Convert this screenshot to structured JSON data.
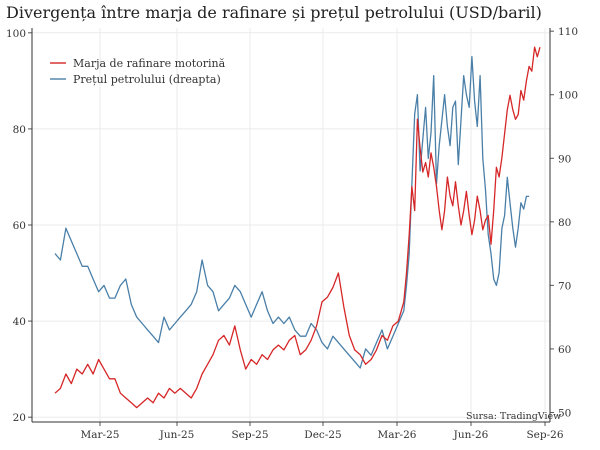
{
  "chart_data": {
    "type": "line",
    "title": "Divergența între marja de rafinare și prețul petrolului (USD/baril)",
    "source": "Sursa: TradingView",
    "legend_position": "top-left",
    "grid": true,
    "x_ticks": [
      "Mar-25",
      "Jun-25",
      "Sep-25",
      "Dec-25",
      "Mar-26",
      "Jun-26",
      "Sep-26"
    ],
    "y_left": {
      "ticks": [
        20,
        40,
        60,
        80,
        100
      ],
      "range": [
        19,
        101
      ]
    },
    "y_right": {
      "ticks": [
        50,
        60,
        70,
        80,
        90,
        100,
        110
      ],
      "range": [
        48.5,
        110.5
      ]
    },
    "series": [
      {
        "name": "Marja de rafinare motorină",
        "axis": "left",
        "color": "#d62728",
        "points": [
          [
            0,
            25
          ],
          [
            2,
            26
          ],
          [
            4,
            29
          ],
          [
            6,
            27
          ],
          [
            8,
            30
          ],
          [
            10,
            29
          ],
          [
            12,
            31
          ],
          [
            14,
            29
          ],
          [
            16,
            32
          ],
          [
            18,
            30
          ],
          [
            20,
            28
          ],
          [
            22,
            28
          ],
          [
            24,
            25
          ],
          [
            26,
            24
          ],
          [
            28,
            23
          ],
          [
            30,
            22
          ],
          [
            32,
            23
          ],
          [
            34,
            24
          ],
          [
            36,
            23
          ],
          [
            38,
            25
          ],
          [
            40,
            24
          ],
          [
            42,
            26
          ],
          [
            44,
            25
          ],
          [
            46,
            26
          ],
          [
            48,
            25
          ],
          [
            50,
            24
          ],
          [
            52,
            26
          ],
          [
            54,
            29
          ],
          [
            56,
            31
          ],
          [
            58,
            33
          ],
          [
            60,
            36
          ],
          [
            62,
            37
          ],
          [
            64,
            35
          ],
          [
            66,
            39
          ],
          [
            68,
            34
          ],
          [
            70,
            30
          ],
          [
            72,
            32
          ],
          [
            74,
            31
          ],
          [
            76,
            33
          ],
          [
            78,
            32
          ],
          [
            80,
            34
          ],
          [
            82,
            35
          ],
          [
            84,
            34
          ],
          [
            86,
            36
          ],
          [
            88,
            37
          ],
          [
            90,
            33
          ],
          [
            92,
            34
          ],
          [
            94,
            36
          ],
          [
            96,
            39
          ],
          [
            98,
            44
          ],
          [
            100,
            45
          ],
          [
            102,
            47
          ],
          [
            104,
            50
          ],
          [
            106,
            43
          ],
          [
            108,
            37
          ],
          [
            110,
            34
          ],
          [
            112,
            33
          ],
          [
            114,
            31
          ],
          [
            116,
            32
          ],
          [
            118,
            34
          ],
          [
            120,
            37
          ],
          [
            122,
            36
          ],
          [
            124,
            39
          ],
          [
            126,
            40
          ],
          [
            128,
            44
          ],
          [
            129,
            50
          ],
          [
            130,
            58
          ],
          [
            131,
            68
          ],
          [
            132,
            63
          ],
          [
            133,
            82
          ],
          [
            134,
            76
          ],
          [
            135,
            71
          ],
          [
            136,
            73
          ],
          [
            137,
            70
          ],
          [
            138,
            75
          ],
          [
            139,
            72
          ],
          [
            140,
            68
          ],
          [
            141,
            63
          ],
          [
            142,
            59
          ],
          [
            143,
            63
          ],
          [
            144,
            70
          ],
          [
            145,
            66
          ],
          [
            146,
            64
          ],
          [
            147,
            69
          ],
          [
            148,
            64
          ],
          [
            149,
            60
          ],
          [
            150,
            63
          ],
          [
            151,
            67
          ],
          [
            152,
            62
          ],
          [
            153,
            58
          ],
          [
            154,
            61
          ],
          [
            155,
            66
          ],
          [
            156,
            63
          ],
          [
            157,
            59
          ],
          [
            158,
            61
          ],
          [
            159,
            62
          ],
          [
            160,
            56
          ],
          [
            161,
            63
          ],
          [
            162,
            72
          ],
          [
            163,
            70
          ],
          [
            164,
            74
          ],
          [
            165,
            79
          ],
          [
            166,
            84
          ],
          [
            167,
            87
          ],
          [
            168,
            84
          ],
          [
            169,
            82
          ],
          [
            170,
            83
          ],
          [
            171,
            88
          ],
          [
            172,
            86
          ],
          [
            173,
            90
          ],
          [
            174,
            93
          ],
          [
            175,
            92
          ],
          [
            176,
            97
          ],
          [
            177,
            95
          ],
          [
            178,
            97
          ]
        ]
      },
      {
        "name": "Prețul petrolului (dreapta)",
        "axis": "right",
        "color": "#4a7fa8",
        "points": [
          [
            0,
            75
          ],
          [
            2,
            74
          ],
          [
            4,
            79
          ],
          [
            6,
            77
          ],
          [
            8,
            75
          ],
          [
            10,
            73
          ],
          [
            12,
            73
          ],
          [
            14,
            71
          ],
          [
            16,
            69
          ],
          [
            18,
            70
          ],
          [
            20,
            68
          ],
          [
            22,
            68
          ],
          [
            24,
            70
          ],
          [
            26,
            71
          ],
          [
            28,
            67
          ],
          [
            30,
            65
          ],
          [
            32,
            64
          ],
          [
            34,
            63
          ],
          [
            36,
            62
          ],
          [
            38,
            61
          ],
          [
            40,
            65
          ],
          [
            42,
            63
          ],
          [
            44,
            64
          ],
          [
            46,
            65
          ],
          [
            48,
            66
          ],
          [
            50,
            67
          ],
          [
            52,
            69
          ],
          [
            54,
            74
          ],
          [
            56,
            70
          ],
          [
            58,
            69
          ],
          [
            60,
            66
          ],
          [
            62,
            67
          ],
          [
            64,
            68
          ],
          [
            66,
            70
          ],
          [
            68,
            69
          ],
          [
            70,
            67
          ],
          [
            72,
            65
          ],
          [
            74,
            67
          ],
          [
            76,
            69
          ],
          [
            78,
            66
          ],
          [
            80,
            64
          ],
          [
            82,
            65
          ],
          [
            84,
            64
          ],
          [
            86,
            65
          ],
          [
            88,
            63
          ],
          [
            90,
            62
          ],
          [
            92,
            62
          ],
          [
            94,
            64
          ],
          [
            96,
            63
          ],
          [
            98,
            61
          ],
          [
            100,
            60
          ],
          [
            102,
            62
          ],
          [
            104,
            61
          ],
          [
            106,
            60
          ],
          [
            108,
            59
          ],
          [
            110,
            58
          ],
          [
            112,
            57
          ],
          [
            114,
            60
          ],
          [
            116,
            59
          ],
          [
            118,
            61
          ],
          [
            120,
            63
          ],
          [
            122,
            60
          ],
          [
            124,
            62
          ],
          [
            126,
            64
          ],
          [
            128,
            66
          ],
          [
            129,
            70
          ],
          [
            130,
            75
          ],
          [
            131,
            86
          ],
          [
            132,
            97
          ],
          [
            133,
            100
          ],
          [
            134,
            88
          ],
          [
            135,
            93
          ],
          [
            136,
            98
          ],
          [
            137,
            90
          ],
          [
            138,
            94
          ],
          [
            139,
            103
          ],
          [
            140,
            86
          ],
          [
            141,
            92
          ],
          [
            142,
            96
          ],
          [
            143,
            100
          ],
          [
            144,
            95
          ],
          [
            145,
            92
          ],
          [
            146,
            98
          ],
          [
            147,
            99
          ],
          [
            148,
            89
          ],
          [
            149,
            96
          ],
          [
            150,
            103
          ],
          [
            151,
            100
          ],
          [
            152,
            98
          ],
          [
            153,
            106
          ],
          [
            154,
            99
          ],
          [
            155,
            95
          ],
          [
            156,
            103
          ],
          [
            157,
            90
          ],
          [
            158,
            85
          ],
          [
            159,
            78
          ],
          [
            160,
            75
          ],
          [
            161,
            71
          ],
          [
            162,
            70
          ],
          [
            163,
            72
          ],
          [
            164,
            79
          ],
          [
            165,
            81
          ],
          [
            166,
            87
          ],
          [
            167,
            83
          ],
          [
            168,
            79
          ],
          [
            169,
            76
          ],
          [
            170,
            79
          ],
          [
            171,
            83
          ],
          [
            172,
            82
          ],
          [
            173,
            84
          ],
          [
            174,
            84
          ]
        ]
      }
    ]
  }
}
